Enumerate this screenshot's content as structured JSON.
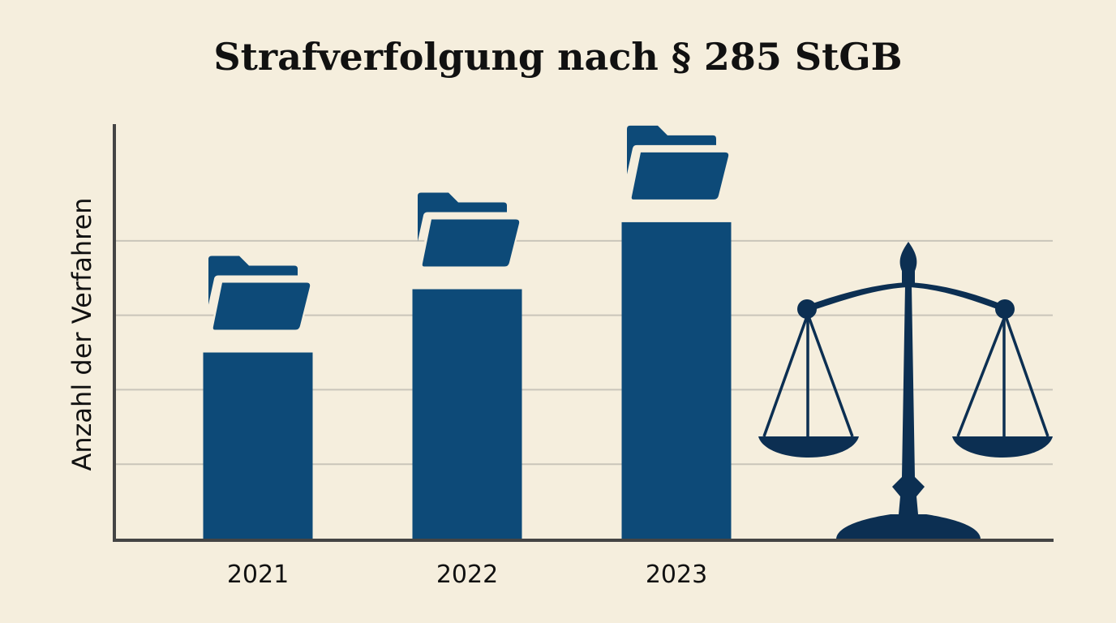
{
  "chart_data": {
    "type": "bar",
    "title": "Strafverfolgung nach § 285 StGB",
    "xlabel": "",
    "ylabel": "Anzahl der Verfahren",
    "categories": [
      "2021",
      "2022",
      "2023"
    ],
    "values": [
      2.5,
      3.35,
      4.25
    ],
    "ylim": [
      0,
      5.6
    ],
    "y_gridlines": [
      1,
      2,
      3,
      4
    ],
    "show_y_tick_labels": false,
    "grid": true,
    "legend": "none",
    "bar_color": "#0d4a78",
    "icon_color": "#0d4a78",
    "scale_color": "#0c2f52",
    "bar_icon": "folder-icon",
    "decoration_icon": "scales-of-justice-icon"
  }
}
